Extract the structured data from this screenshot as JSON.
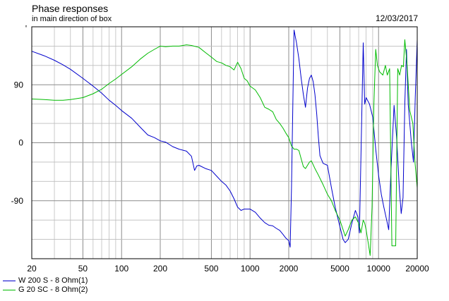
{
  "header": {
    "title": "Phase responses",
    "subtitle": "in main direction of box",
    "date": "12/03/2017"
  },
  "chart_data": {
    "type": "line",
    "title": "Phase responses",
    "subtitle": "in main direction of box",
    "xlabel": "",
    "ylabel": "°",
    "x_scale": "log",
    "xlim": [
      20,
      20000
    ],
    "ylim": [
      -180,
      180
    ],
    "x_ticks": [
      20,
      50,
      100,
      200,
      500,
      1000,
      2000,
      5000,
      10000,
      20000
    ],
    "x_tick_labels": [
      "20",
      "50",
      "100",
      "200",
      "500",
      "1000",
      "2000",
      "5000",
      "10000",
      "20000"
    ],
    "y_ticks": [
      90,
      0,
      -90
    ],
    "y_tick_labels": [
      "90",
      "0",
      "-90"
    ],
    "y_unit_label": "°",
    "grid": true,
    "legend_position": "bottom-left",
    "series": [
      {
        "name": "W 200 S - 8 Ohm(1)",
        "color": "#0000cc",
        "points": [
          [
            20,
            142
          ],
          [
            25,
            135
          ],
          [
            30,
            128
          ],
          [
            35,
            121
          ],
          [
            40,
            114
          ],
          [
            50,
            100
          ],
          [
            60,
            88
          ],
          [
            70,
            77
          ],
          [
            80,
            66
          ],
          [
            90,
            58
          ],
          [
            100,
            50
          ],
          [
            120,
            38
          ],
          [
            140,
            24
          ],
          [
            160,
            12
          ],
          [
            180,
            8
          ],
          [
            200,
            3
          ],
          [
            220,
            1
          ],
          [
            250,
            -6
          ],
          [
            280,
            -10
          ],
          [
            320,
            -13
          ],
          [
            350,
            -21
          ],
          [
            370,
            -43
          ],
          [
            385,
            -36
          ],
          [
            400,
            -35
          ],
          [
            450,
            -40
          ],
          [
            500,
            -43
          ],
          [
            550,
            -52
          ],
          [
            600,
            -60
          ],
          [
            650,
            -66
          ],
          [
            700,
            -75
          ],
          [
            750,
            -87
          ],
          [
            800,
            -100
          ],
          [
            850,
            -105
          ],
          [
            900,
            -103
          ],
          [
            1000,
            -103
          ],
          [
            1100,
            -108
          ],
          [
            1200,
            -117
          ],
          [
            1300,
            -124
          ],
          [
            1400,
            -128
          ],
          [
            1500,
            -129
          ],
          [
            1600,
            -133
          ],
          [
            1700,
            -136
          ],
          [
            1800,
            -142
          ],
          [
            1900,
            -148
          ],
          [
            2000,
            -152
          ],
          [
            2050,
            -162
          ],
          [
            2100,
            -70
          ],
          [
            2200,
            175
          ],
          [
            2300,
            155
          ],
          [
            2400,
            130
          ],
          [
            2500,
            100
          ],
          [
            2600,
            75
          ],
          [
            2700,
            55
          ],
          [
            2800,
            85
          ],
          [
            2900,
            100
          ],
          [
            3000,
            105
          ],
          [
            3100,
            95
          ],
          [
            3200,
            75
          ],
          [
            3300,
            45
          ],
          [
            3400,
            10
          ],
          [
            3500,
            -20
          ],
          [
            3700,
            -32
          ],
          [
            4000,
            -35
          ],
          [
            4300,
            -70
          ],
          [
            4600,
            -100
          ],
          [
            5000,
            -130
          ],
          [
            5300,
            -150
          ],
          [
            5500,
            -155
          ],
          [
            5800,
            -150
          ],
          [
            6200,
            -125
          ],
          [
            6600,
            -105
          ],
          [
            6900,
            -115
          ],
          [
            7100,
            -140
          ],
          [
            7300,
            -20
          ],
          [
            7600,
            155
          ],
          [
            7800,
            60
          ],
          [
            8000,
            70
          ],
          [
            8500,
            60
          ],
          [
            9000,
            40
          ],
          [
            9500,
            -10
          ],
          [
            10000,
            -50
          ],
          [
            10500,
            -80
          ],
          [
            11000,
            -100
          ],
          [
            11500,
            -118
          ],
          [
            12000,
            -135
          ],
          [
            12500,
            -40
          ],
          [
            13200,
            58
          ],
          [
            13800,
            10
          ],
          [
            14500,
            -70
          ],
          [
            15000,
            -110
          ],
          [
            15500,
            -85
          ],
          [
            16000,
            60
          ],
          [
            16500,
            145
          ],
          [
            17000,
            60
          ],
          [
            18000,
            0
          ],
          [
            18700,
            -30
          ],
          [
            19300,
            70
          ],
          [
            20000,
            160
          ]
        ]
      },
      {
        "name": "G 20 SC - 8 Ohm(2)",
        "color": "#00bb00",
        "points": [
          [
            20,
            68
          ],
          [
            25,
            67
          ],
          [
            30,
            66
          ],
          [
            35,
            66
          ],
          [
            40,
            67
          ],
          [
            50,
            70
          ],
          [
            60,
            76
          ],
          [
            70,
            83
          ],
          [
            80,
            92
          ],
          [
            90,
            99
          ],
          [
            100,
            106
          ],
          [
            120,
            118
          ],
          [
            140,
            130
          ],
          [
            160,
            139
          ],
          [
            180,
            145
          ],
          [
            200,
            150
          ],
          [
            220,
            149
          ],
          [
            250,
            150
          ],
          [
            280,
            150
          ],
          [
            320,
            152
          ],
          [
            350,
            151
          ],
          [
            400,
            148
          ],
          [
            450,
            140
          ],
          [
            500,
            133
          ],
          [
            550,
            126
          ],
          [
            600,
            124
          ],
          [
            650,
            120
          ],
          [
            700,
            118
          ],
          [
            750,
            113
          ],
          [
            800,
            125
          ],
          [
            850,
            115
          ],
          [
            900,
            100
          ],
          [
            950,
            96
          ],
          [
            1000,
            88
          ],
          [
            1100,
            82
          ],
          [
            1200,
            70
          ],
          [
            1300,
            55
          ],
          [
            1400,
            52
          ],
          [
            1500,
            48
          ],
          [
            1600,
            36
          ],
          [
            1700,
            30
          ],
          [
            1800,
            23
          ],
          [
            1900,
            15
          ],
          [
            2000,
            8
          ],
          [
            2100,
            -5
          ],
          [
            2200,
            -10
          ],
          [
            2300,
            -10
          ],
          [
            2400,
            -12
          ],
          [
            2500,
            -25
          ],
          [
            2600,
            -37
          ],
          [
            2700,
            -40
          ],
          [
            2800,
            -35
          ],
          [
            2900,
            -30
          ],
          [
            3000,
            -28
          ],
          [
            3200,
            -40
          ],
          [
            3400,
            -50
          ],
          [
            3700,
            -65
          ],
          [
            4000,
            -80
          ],
          [
            4300,
            -90
          ],
          [
            4600,
            -105
          ],
          [
            5000,
            -120
          ],
          [
            5300,
            -135
          ],
          [
            5500,
            -145
          ],
          [
            5800,
            -135
          ],
          [
            6200,
            -120
          ],
          [
            6600,
            -115
          ],
          [
            7000,
            -125
          ],
          [
            7300,
            -140
          ],
          [
            7600,
            -120
          ],
          [
            7800,
            -125
          ],
          [
            8000,
            -135
          ],
          [
            8300,
            -155
          ],
          [
            8600,
            -175
          ],
          [
            8900,
            -100
          ],
          [
            9200,
            60
          ],
          [
            9500,
            145
          ],
          [
            9800,
            120
          ],
          [
            10200,
            110
          ],
          [
            10800,
            105
          ],
          [
            11300,
            120
          ],
          [
            11700,
            105
          ],
          [
            12200,
            115
          ],
          [
            12700,
            -160
          ],
          [
            13200,
            -160
          ],
          [
            13600,
            -160
          ],
          [
            14100,
            115
          ],
          [
            14600,
            105
          ],
          [
            15100,
            120
          ],
          [
            15600,
            118
          ],
          [
            16000,
            160
          ],
          [
            16700,
            120
          ],
          [
            17500,
            50
          ],
          [
            18500,
            30
          ],
          [
            19200,
            -30
          ],
          [
            20000,
            -70
          ]
        ]
      }
    ]
  }
}
